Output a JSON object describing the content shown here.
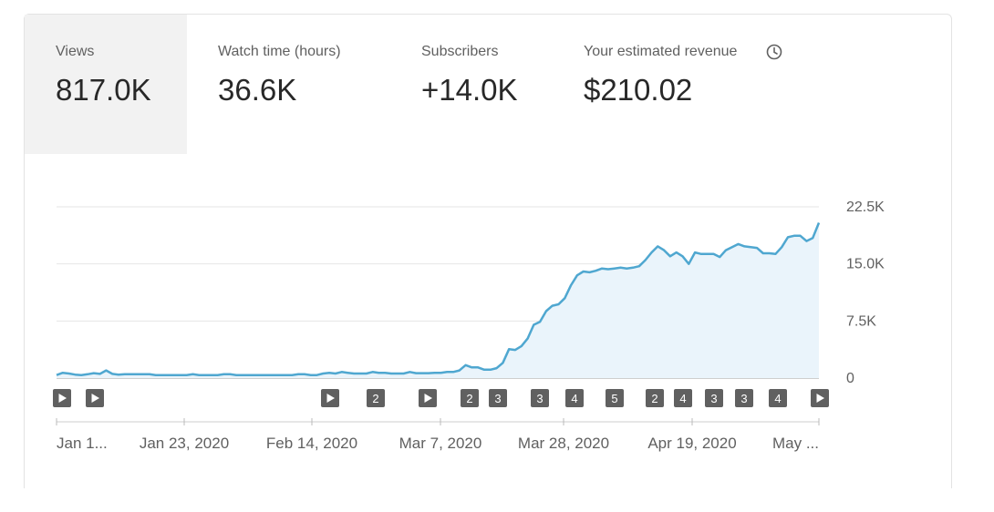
{
  "metrics": [
    {
      "label": "Views",
      "value": "817.0K",
      "active": true
    },
    {
      "label": "Watch time (hours)",
      "value": "36.6K",
      "active": false
    },
    {
      "label": "Subscribers",
      "value": "+14.0K",
      "active": false
    },
    {
      "label": "Your estimated revenue",
      "value": "$210.02",
      "active": false,
      "icon": "clock-icon"
    }
  ],
  "colors": {
    "line": "#4fa7d0",
    "fill": "#eaf4fb",
    "grid": "#e6e6e6",
    "marker": "#606060"
  },
  "chart_data": {
    "type": "area",
    "title": "",
    "xlabel": "",
    "ylabel": "",
    "ylim": [
      0,
      22500
    ],
    "yticks": [
      "0",
      "7.5K",
      "15.0K",
      "22.5K"
    ],
    "ytick_values": [
      0,
      7500,
      15000,
      22500
    ],
    "xticks": [
      "Jan 1...",
      "Jan 23, 2020",
      "Feb 14, 2020",
      "Mar 7, 2020",
      "Mar 28, 2020",
      "Apr 19, 2020",
      "May ..."
    ],
    "grid": true,
    "series": [
      {
        "values": [
          400,
          700,
          600,
          450,
          400,
          500,
          650,
          550,
          1000,
          550,
          450,
          500,
          500,
          500,
          500,
          500,
          400,
          400,
          400,
          400,
          400,
          400,
          500,
          400,
          400,
          400,
          400,
          500,
          500,
          400,
          400,
          400,
          400,
          400,
          400,
          400,
          400,
          400,
          400,
          500,
          500,
          400,
          400,
          600,
          700,
          600,
          800,
          700,
          600,
          600,
          600,
          800,
          700,
          700,
          600,
          600,
          600,
          800,
          650,
          650,
          650,
          700,
          700,
          800,
          800,
          1000,
          1700,
          1400,
          1400,
          1100,
          1100,
          1300,
          2000,
          3800,
          3700,
          4200,
          5200,
          7000,
          7400,
          8800,
          9500,
          9700,
          10500,
          12200,
          13500,
          14000,
          13900,
          14100,
          14400,
          14300,
          14400,
          14500,
          14400,
          14500,
          14700,
          15500,
          16500,
          17300,
          16800,
          16000,
          16500,
          16000,
          15000,
          16500,
          16300,
          16300,
          16300,
          15900,
          16800,
          17200,
          17600,
          17300,
          17200,
          17100,
          16400,
          16400,
          16300,
          17200,
          18500,
          18700,
          18700,
          18000,
          18400,
          20400
        ]
      }
    ],
    "markers": [
      "",
      "",
      "",
      "2",
      "",
      "2",
      "3",
      "3",
      "4",
      "5",
      "2",
      "4",
      "3",
      "3",
      "4",
      ""
    ]
  }
}
